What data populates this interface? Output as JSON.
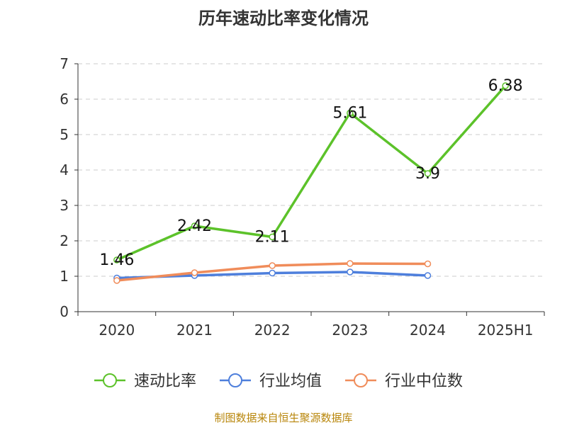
{
  "chart_data": {
    "type": "line",
    "title": "历年速动比率变化情况",
    "categories": [
      "2020",
      "2021",
      "2022",
      "2023",
      "2024",
      "2025H1"
    ],
    "ylim": [
      0,
      7
    ],
    "yticks": [
      "0",
      "1",
      "2",
      "3",
      "4",
      "5",
      "6",
      "7"
    ],
    "grid": true,
    "legend_position": "bottom",
    "series": [
      {
        "name": "速动比率",
        "color": "#5cc22a",
        "values": [
          1.46,
          2.42,
          2.11,
          5.61,
          3.9,
          6.38
        ],
        "labels": [
          "1.46",
          "2.42",
          "2.11",
          "5.61",
          "3.9",
          "6.38"
        ]
      },
      {
        "name": "行业均值",
        "color": "#4e7fdc",
        "values": [
          0.95,
          1.02,
          1.09,
          1.12,
          1.02,
          null
        ]
      },
      {
        "name": "行业中位数",
        "color": "#f08c5a",
        "values": [
          0.88,
          1.1,
          1.3,
          1.36,
          1.35,
          null
        ]
      }
    ]
  },
  "source_note": "制图数据来自恒生聚源数据库"
}
